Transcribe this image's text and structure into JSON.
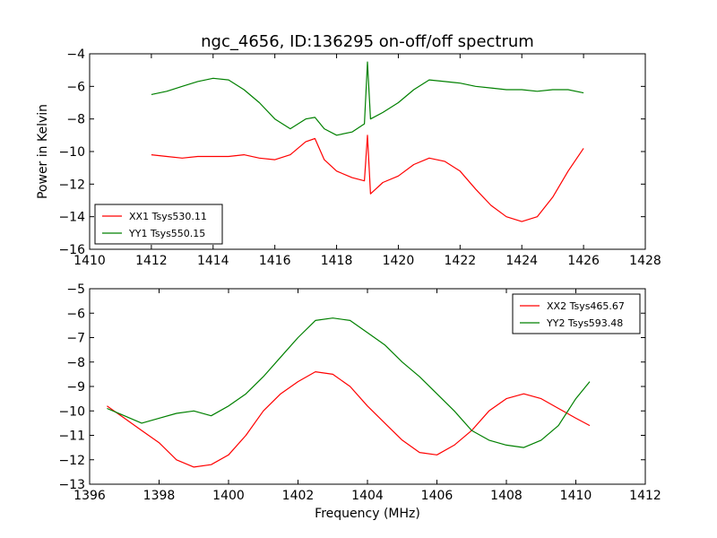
{
  "chart_data": [
    {
      "type": "line",
      "title": "ngc_4656, ID:136295 on-off/off spectrum",
      "xlabel": "",
      "ylabel": "Power in Kelvin",
      "xlim": [
        1410,
        1428
      ],
      "ylim": [
        -16,
        -4
      ],
      "xticks": [
        1410,
        1412,
        1414,
        1416,
        1418,
        1420,
        1422,
        1424,
        1426,
        1428
      ],
      "yticks": [
        -16,
        -14,
        -12,
        -10,
        -8,
        -6,
        -4
      ],
      "legend_position": "lower-left",
      "grid": false,
      "series": [
        {
          "name": "XX1 Tsys530.11",
          "color": "#ff0000",
          "x": [
            1412.0,
            1412.5,
            1413.0,
            1413.5,
            1414.0,
            1414.5,
            1415.0,
            1415.5,
            1416.0,
            1416.5,
            1417.0,
            1417.3,
            1417.6,
            1418.0,
            1418.5,
            1418.9,
            1419.0,
            1419.1,
            1419.5,
            1420.0,
            1420.5,
            1421.0,
            1421.5,
            1422.0,
            1422.5,
            1423.0,
            1423.5,
            1424.0,
            1424.5,
            1425.0,
            1425.5,
            1426.0
          ],
          "y": [
            -10.2,
            -10.3,
            -10.4,
            -10.3,
            -10.3,
            -10.3,
            -10.2,
            -10.4,
            -10.5,
            -10.2,
            -9.4,
            -9.2,
            -10.5,
            -11.2,
            -11.6,
            -11.8,
            -9.0,
            -12.6,
            -11.9,
            -11.5,
            -10.8,
            -10.4,
            -10.6,
            -11.2,
            -12.3,
            -13.3,
            -14.0,
            -14.3,
            -14.0,
            -12.8,
            -11.2,
            -9.8
          ]
        },
        {
          "name": "YY1 Tsys550.15",
          "color": "#008000",
          "x": [
            1412.0,
            1412.5,
            1413.0,
            1413.5,
            1414.0,
            1414.5,
            1415.0,
            1415.5,
            1416.0,
            1416.5,
            1417.0,
            1417.3,
            1417.6,
            1418.0,
            1418.5,
            1418.9,
            1419.0,
            1419.1,
            1419.5,
            1420.0,
            1420.5,
            1421.0,
            1421.5,
            1422.0,
            1422.5,
            1423.0,
            1423.5,
            1424.0,
            1424.5,
            1425.0,
            1425.5,
            1426.0
          ],
          "y": [
            -6.5,
            -6.3,
            -6.0,
            -5.7,
            -5.5,
            -5.6,
            -6.2,
            -7.0,
            -8.0,
            -8.6,
            -8.0,
            -7.9,
            -8.6,
            -9.0,
            -8.8,
            -8.3,
            -4.5,
            -8.0,
            -7.6,
            -7.0,
            -6.2,
            -5.6,
            -5.7,
            -5.8,
            -6.0,
            -6.1,
            -6.2,
            -6.2,
            -6.3,
            -6.2,
            -6.2,
            -6.4
          ]
        }
      ]
    },
    {
      "type": "line",
      "title": "",
      "xlabel": "Frequency (MHz)",
      "ylabel": "",
      "xlim": [
        1396,
        1412
      ],
      "ylim": [
        -13,
        -5
      ],
      "xticks": [
        1396,
        1398,
        1400,
        1402,
        1404,
        1406,
        1408,
        1410,
        1412
      ],
      "yticks": [
        -13,
        -12,
        -11,
        -10,
        -9,
        -8,
        -7,
        -6,
        -5
      ],
      "legend_position": "upper-right",
      "grid": false,
      "series": [
        {
          "name": "XX2 Tsys465.67",
          "color": "#ff0000",
          "x": [
            1396.5,
            1397.0,
            1397.5,
            1398.0,
            1398.5,
            1399.0,
            1399.5,
            1400.0,
            1400.5,
            1401.0,
            1401.5,
            1402.0,
            1402.5,
            1403.0,
            1403.5,
            1404.0,
            1404.5,
            1405.0,
            1405.5,
            1406.0,
            1406.5,
            1407.0,
            1407.5,
            1408.0,
            1408.5,
            1409.0,
            1409.5,
            1410.0,
            1410.4
          ],
          "y": [
            -9.8,
            -10.3,
            -10.8,
            -11.3,
            -12.0,
            -12.3,
            -12.2,
            -11.8,
            -11.0,
            -10.0,
            -9.3,
            -8.8,
            -8.4,
            -8.5,
            -9.0,
            -9.8,
            -10.5,
            -11.2,
            -11.7,
            -11.8,
            -11.4,
            -10.8,
            -10.0,
            -9.5,
            -9.3,
            -9.5,
            -9.9,
            -10.3,
            -10.6
          ]
        },
        {
          "name": "YY2 Tsys593.48",
          "color": "#008000",
          "x": [
            1396.5,
            1397.0,
            1397.5,
            1398.0,
            1398.5,
            1399.0,
            1399.5,
            1400.0,
            1400.5,
            1401.0,
            1401.5,
            1402.0,
            1402.5,
            1403.0,
            1403.5,
            1404.0,
            1404.5,
            1405.0,
            1405.5,
            1406.0,
            1406.5,
            1407.0,
            1407.5,
            1408.0,
            1408.5,
            1409.0,
            1409.5,
            1410.0,
            1410.4
          ],
          "y": [
            -9.9,
            -10.2,
            -10.5,
            -10.3,
            -10.1,
            -10.0,
            -10.2,
            -9.8,
            -9.3,
            -8.6,
            -7.8,
            -7.0,
            -6.3,
            -6.2,
            -6.3,
            -6.8,
            -7.3,
            -8.0,
            -8.6,
            -9.3,
            -10.0,
            -10.8,
            -11.2,
            -11.4,
            -11.5,
            -11.2,
            -10.6,
            -9.5,
            -8.8
          ]
        }
      ]
    }
  ]
}
